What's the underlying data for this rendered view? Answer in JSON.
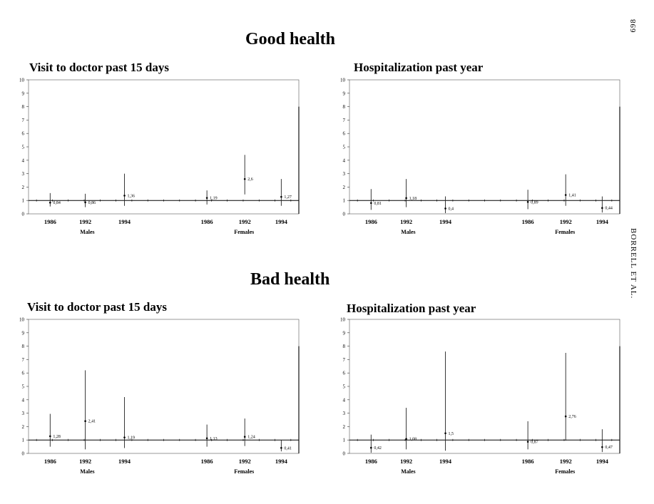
{
  "page_number": "698",
  "running_head": "BORRELL ET AL.",
  "sections": [
    {
      "title": "Good health"
    },
    {
      "title": "Bad health"
    }
  ],
  "chart_data": [
    {
      "type": "scatter",
      "section": "Good health",
      "title": "Visit to doctor past 15 days",
      "ylim": [
        0,
        10
      ],
      "yticks": [
        "0",
        "1",
        "2",
        "3",
        "4",
        "5",
        "6",
        "7",
        "8",
        "9",
        "10"
      ],
      "reference_line": 1,
      "groups": [
        "Males",
        "Females"
      ],
      "x_labels": [
        "1986",
        "1992",
        "1994",
        "1986",
        "1992",
        "1994"
      ],
      "points": [
        {
          "group": "Males",
          "year": "1986",
          "value": 0.84,
          "label": "0,84",
          "ci": [
            0.55,
            1.55
          ]
        },
        {
          "group": "Males",
          "year": "1992",
          "value": 0.86,
          "label": "0,86",
          "ci": [
            0.5,
            1.5
          ]
        },
        {
          "group": "Males",
          "year": "1994",
          "value": 1.36,
          "label": "1,36",
          "ci": [
            0.6,
            3.0
          ]
        },
        {
          "group": "Females",
          "year": "1986",
          "value": 1.19,
          "label": "1,19",
          "ci": [
            0.7,
            1.75
          ]
        },
        {
          "group": "Females",
          "year": "1992",
          "value": 2.6,
          "label": "2,6",
          "ci": [
            1.45,
            4.4
          ]
        },
        {
          "group": "Females",
          "year": "1994",
          "value": 1.27,
          "label": "1,27",
          "ci": [
            0.6,
            2.6
          ]
        }
      ]
    },
    {
      "type": "scatter",
      "section": "Good health",
      "title": "Hospitalization past year",
      "ylim": [
        0,
        10
      ],
      "yticks": [
        "0",
        "1",
        "2",
        "3",
        "4",
        "5",
        "6",
        "7",
        "8",
        "9",
        "10"
      ],
      "reference_line": 1,
      "groups": [
        "Males",
        "Females"
      ],
      "x_labels": [
        "1986",
        "1992",
        "1994",
        "1986",
        "1992",
        "1994"
      ],
      "points": [
        {
          "group": "Males",
          "year": "1986",
          "value": 0.81,
          "label": "0,81",
          "ci": [
            0.3,
            1.85
          ]
        },
        {
          "group": "Males",
          "year": "1992",
          "value": 1.18,
          "label": "1,18",
          "ci": [
            0.5,
            2.6
          ]
        },
        {
          "group": "Males",
          "year": "1994",
          "value": 0.4,
          "label": "0,4",
          "ci": [
            0.05,
            1.3
          ]
        },
        {
          "group": "Females",
          "year": "1986",
          "value": 0.89,
          "label": "0,89",
          "ci": [
            0.35,
            1.8
          ]
        },
        {
          "group": "Females",
          "year": "1992",
          "value": 1.41,
          "label": "1,41",
          "ci": [
            0.6,
            2.95
          ]
        },
        {
          "group": "Females",
          "year": "1994",
          "value": 0.44,
          "label": "0,44",
          "ci": [
            0.1,
            1.3
          ]
        }
      ]
    },
    {
      "type": "scatter",
      "section": "Bad health",
      "title": "Visit to doctor past 15 days",
      "ylim": [
        0,
        10
      ],
      "yticks": [
        "0",
        "1",
        "2",
        "3",
        "4",
        "5",
        "6",
        "7",
        "8",
        "9",
        "10"
      ],
      "reference_line": 1,
      "groups": [
        "Males",
        "Females"
      ],
      "x_labels": [
        "1986",
        "1992",
        "1994",
        "1986",
        "1992",
        "1994"
      ],
      "points": [
        {
          "group": "Males",
          "year": "1986",
          "value": 1.28,
          "label": "1,28",
          "ci": [
            0.5,
            2.95
          ]
        },
        {
          "group": "Males",
          "year": "1992",
          "value": 2.41,
          "label": "2,41",
          "ci": [
            0.3,
            6.2
          ]
        },
        {
          "group": "Males",
          "year": "1994",
          "value": 1.19,
          "label": "1,19",
          "ci": [
            0.4,
            4.2
          ]
        },
        {
          "group": "Females",
          "year": "1986",
          "value": 1.13,
          "label": "1,13",
          "ci": [
            0.5,
            2.15
          ]
        },
        {
          "group": "Females",
          "year": "1992",
          "value": 1.24,
          "label": "1,24",
          "ci": [
            0.55,
            2.6
          ]
        },
        {
          "group": "Females",
          "year": "1994",
          "value": 0.41,
          "label": "0,41",
          "ci": [
            0.15,
            1.0
          ]
        }
      ]
    },
    {
      "type": "scatter",
      "section": "Bad health",
      "title": "Hospitalization past year",
      "ylim": [
        0,
        10
      ],
      "yticks": [
        "0",
        "1",
        "2",
        "3",
        "4",
        "5",
        "6",
        "7",
        "8",
        "9",
        "10"
      ],
      "reference_line": 1,
      "groups": [
        "Males",
        "Females"
      ],
      "x_labels": [
        "1986",
        "1992",
        "1994",
        "1986",
        "1992",
        "1994"
      ],
      "points": [
        {
          "group": "Males",
          "year": "1986",
          "value": 0.42,
          "label": "0,42",
          "ci": [
            0.05,
            1.4
          ]
        },
        {
          "group": "Males",
          "year": "1992",
          "value": 1.08,
          "label": "1,08",
          "ci": [
            0.3,
            3.4
          ]
        },
        {
          "group": "Males",
          "year": "1994",
          "value": 1.5,
          "label": "1,5",
          "ci": [
            0.2,
            7.6
          ]
        },
        {
          "group": "Females",
          "year": "1986",
          "value": 0.87,
          "label": "0,87",
          "ci": [
            0.3,
            2.4
          ]
        },
        {
          "group": "Females",
          "year": "1992",
          "value": 2.76,
          "label": "2,76",
          "ci": [
            0.95,
            7.5
          ]
        },
        {
          "group": "Females",
          "year": "1994",
          "value": 0.47,
          "label": "0,47",
          "ci": [
            0.1,
            1.8
          ]
        }
      ]
    }
  ]
}
